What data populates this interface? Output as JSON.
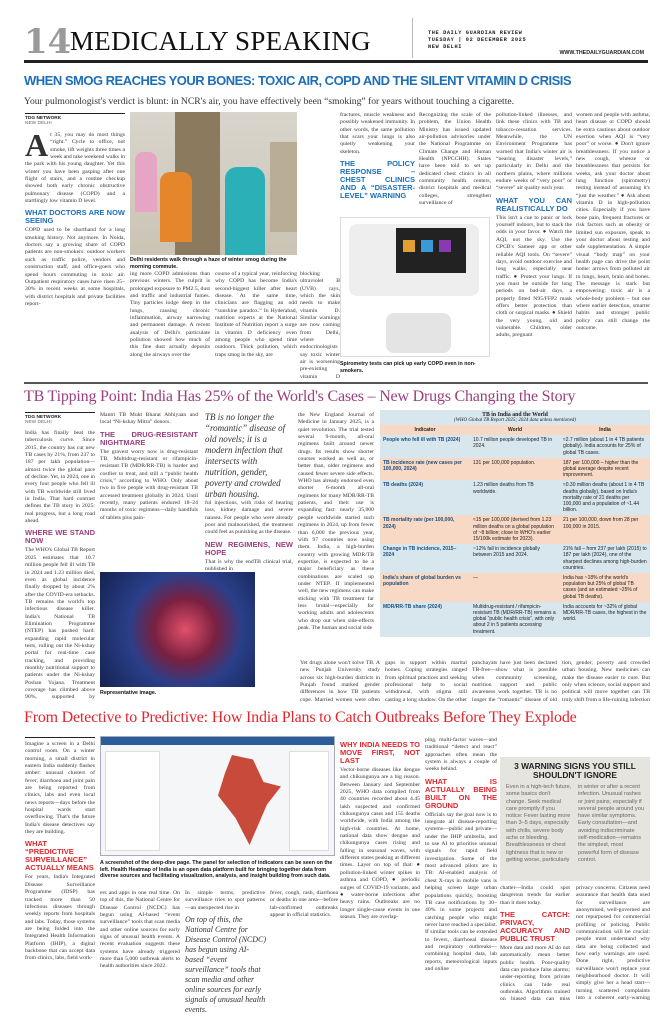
{
  "header": {
    "page_number": "14",
    "section": "MEDICALLY SPEAKING",
    "paper": "THE DAILY GUARDIAN REVIEW",
    "date": "TUESDAY | 02 DECEMBER 2025",
    "city": "NEW DELHI",
    "url": "WWW.THEDAILYGUARDIAN.COM"
  },
  "article1": {
    "headline": "WHEN SMOG REACHES YOUR BONES: TOXIC AIR, COPD AND THE SILENT VITAMIN D CRISIS",
    "dek": "Your pulmonologist's verdict is blunt: in NCR's air, you have effectively been “smoking” for years without touching a cigarette.",
    "byline": "TDG NETWORK",
    "location": "NEW DELHI",
    "drop_cap": "A",
    "intro": "t 35, you may do most things “right.” Cycle to office, not smoke, lift weights three times a week and take weekend walks in the park with his young daughter. Yet this winter you have been gasping after one flight of stairs, and a routine checkup showed both early chronic obstructive pulmonary disease (COPD) and a startlingly low vitamin D level.",
    "sub1": "WHAT DOCTORS ARE NOW SEEING",
    "col1b": "COPD used to be shorthand for a long smoking history. Not anymore. In Noida, doctors say a growing share of COPD patients are non-smokers: outdoor workers such as traffic police, vendors and construction staff, and office-goers who spend hours commuting in toxic air. Outpatient respiratory cases have risen 25–30% in recent weeks at some hospitals, with district hospitals and private facilities report-",
    "photo_caption": "Delhi residents walk through a haze of winter smog during the morning commute.",
    "col2": "ing more COPD admissions than previous winters. The culprit is prolonged exposure to PM2.5, dust and traffic and industrial fumes. Tiny particles lodge deep in the lungs, causing chronic inflammation, airway narrowing and permanent damage. A recent analysis of Delhi's particulate pollution showed how much of this fine dust actually deposits along the airways over the",
    "col3": "course of a typical year, reinforcing why COPD has become India's second-biggest killer after heart disease. At the same time, clinicians are flagging an odd “sunshine paradox.” In Hyderabad, nutrition experts at the National Institute of Nutrition report a surge in vitamin D deficiency even among people who spend time outdoors. Thick pollution, which traps smog in the sky, are",
    "col4": "blocking ultraviolet B (UVB) rays, which the skin needs to make vitamin D. Similar warnings are now coming from Delhi, where endocrinologists say toxic winter air is worsening pre-existing vitamin D deficiency, especially in office workers, older adults and women who already get limited sun exposure. Low vitamin D, in turn, raises the risk of brittle bones,",
    "col5": "fractures, muscle weakness and possibly weakened immunity. In other words, the same pollution that scars your lungs is also quietly weakening your skeleton.",
    "sub2": "THE POLICY RESPONSE – CHEST CLINICS AND A “DISASTER-LEVEL” WARNING",
    "col6": "Recognizing the scale of the problem, the Union Health Ministry has issued updated air-pollution advisories under the National Programme on Climate Change and Human Health (NPCCHH). States have been told to set up dedicated chest clinics in all community health centers, district hospitals and medical colleges, strengthen surveillance of",
    "col7": "pollution-linked illnesses, and link these clinics with TB and tobacco-cessation services. Meanwhile, the UN Environment Programme has warned that India's winter air is “nearing disaster levels,” particularly in Delhi and the northern plains, where millions endure weeks of “very poor” or “severe” air quality each year.",
    "sub3": "WHAT YOU CAN REALISTICALLY DO",
    "col7b": "This isn't a cue to panic or lock yourself indoors, but to stack the odds in your favor. ● Watch the AQI, not the sky. Use the CPCB's Sameer app or other reliable AQI tools. On “severe” days, avoid outdoor exercise and long walks, especially near traffic. ● Protect your lungs. If you must be outside for long periods on bad-air days, a properly fitted N95/FFP2 mask offers better protection than cloth or surgical masks. ● Shield the very young, old and vulnerable. Children, older adults, pregnant",
    "col8": "women and people with asthma, heart disease or COPD should be extra cautious about outdoor exertion when AQI is “very poor” or worse. ● Don't ignore breathlessness. If you notice a new cough, wheeze or breathlessness that persists for weeks, ask your doctor about lung function (spirometry) testing instead of assuming it's “just the weather.” ● Ask about vitamin D in high-pollution cities. Especially if you have bone pain, frequent fractures or risk factors such as obesity or limited sun exposure, speak to your doctor about testing and safe supplementation. A simple visual “body map” on your health page can drive the point home: arrows from polluted air to lungs, heart, brain and bones. The message is stark but empowering: toxic air is a whole-body problem – but one where earlier detection, smarter habits and stronger public policy can still change the outcome.",
    "spiro_caption": "Spirometry tests can pick up early COPD even in non-smokers."
  },
  "article2": {
    "headline": "TB Tipping Point: India Has 25% of the World's Cases – New Drugs Changing the Story",
    "byline": "TDG NETWORK",
    "location": "NEW DELHI",
    "col1": "India has finally beat the tuberculosis curve. Since 2015, the country has cut new TB cases by 21%, from 237 to 187 per lakh population—almost twice the global pace of decline. Yet, in 2024, one in every four people who fell ill with TB worldwide still lived in India. That hard contrast defines the TB story in 2025: real progress, but a long road ahead.",
    "sub1": "WHERE WE STAND NOW",
    "col1b": "The WHO's Global TB Report 2025 estimates that 10.7 million people fell ill with TB in 2024 and 1.23 million died, even as global incidence finally dropped by about 2% after the COVID-era setbacks. TB remains the world's top infectious disease killer. India's National TB Elimination Programme (NTEP) has pushed hard: expanding rapid molecular tests, rolling out the Ni-kshay portal for real-time case tracking, and providing monthly nutritional support to patients under the Ni-kshay Poshan Yojana. Treatment coverage has climbed above 90%, supported by community campaigns such as the Pradhan",
    "col2": "Mantri TB Mukt Bharat Abhiyaan and local “Ni-kshay Mitra” donors.",
    "sub2": "THE DRUG-RESISTANT NIGHTMARE",
    "col2b": "The gravest worry now is drug-resistant TB. Multidrug-resistant or rifampicin-resistant TB (MDR/RR-TB) is harder and costlier to treat, and still a “public health crisis,” according to WHO. Only about two in five people with drug-resistant TB accessed treatment globally in 2024. Until recently, many patients endured 18–24 months of toxic regimens—daily handfuls of tablets plus pain-",
    "quote": "TB is no longer the “romantic” disease of old novels; it is a modern infection that intersects with nutrition, gender, poverty and crowded urban housing.",
    "col3": "ful injections, with risks of hearing loss, kidney damage and severe nausea. For people who were already poor and malnourished, the treatment could feel as punishing as the disease.",
    "sub3": "NEW REGIMENS, NEW HOPE",
    "col3b": "That is why the endTB clinical trial, published in",
    "photo_caption": "Representative image.",
    "col4": "the New England Journal of Medicine in January 2025, is a quiet revolution. The trial tested several 9-month, all-oral regimens built around newer drugs. Its results show shorter courses worked as well as, or better than, older regimens and caused fewer severe side effects. WHO has already endorsed even shorter 6-month all-oral regimens for many MDR/RR-TB patients, and their use is expanding fast: nearly 35,000 people worldwide started such regimens in 2024, up from fewer than 6,000 the previous year, with 97 countries now using them. India, a high-burden country with growing MDR/TB expertise, is expected to be a major beneficiary as these combinations are scaled up under NTEP. If implemented well, the new regimens can make sticking with TB treatment far less brutal—especially for working adults and adolescents who drop out when side-effects peak. The human and social side",
    "col5": "Yet drugs alone won't solve TB. A new Punjab University study across six high-burden districts in Punjab found marked gender differences in how TB patients cope. Married women were often brought for treatment not by in-laws but by their birth families, highlighting",
    "col6": "gaps in support within marital homes. Coping strategies ranged from spiritual practices and seeking professional help to social withdrawal, with stigma still casting a long shadow. On the other hand, examples like Ganjam district in Odisha—where 165 gram",
    "col7": "panchayats have just been declared TB-free—show what is possible when community screening, nutrition support and public awareness work together. TB is no longer the “romantic” disease of old novels; it is a modern infection that intersects with nutri-",
    "col8": "tion, gender, poverty and crowded urban housing. New medicines can make the disease easier to cure. But only when science, social support and political will move together can TB truly shift from a life-ruining infection to a treatable episode in a person's life.",
    "table": {
      "title": "TB in India and the World",
      "subtitle": "(WHO Global TB Report 2025; 2024 data unless mentioned)",
      "headers": [
        "Indicator",
        "World",
        "India"
      ],
      "rows": [
        [
          "People who fell ill with TB (2024)",
          "10.7 million people developed TB in 2024.",
          "≈2.7 million (about 1 in 4 TB patients globally). India accounts for 25% of global TB cases."
        ],
        [
          "TB incidence rate (new cases per 100,000, 2024)",
          "131 per 100,000 population.",
          "187 per 100,000 – higher than the global average despite recent improvement."
        ],
        [
          "TB deaths (2024)",
          "1.23 million deaths from TB worldwide.",
          "≈0.30 million deaths (about 1 in 4 TB deaths globally), based on India's mortality rate of 21 deaths per 100,000 and a population of ~1.44 billion."
        ],
        [
          "TB mortality rate (per 100,000, 2024)",
          "≈15 per 100,000 (derived from 1.23 million deaths on a global population of ~8 billion; close to WHO's earlier 15/100k estimate for 2023).",
          "21 per 100,000, down from 28 per 100,000 in 2015."
        ],
        [
          "Change in TB incidence, 2015–2024",
          "~12% fall in incidence globally between 2015 and 2024.",
          "21% fall – from 237 per lakh (2015) to 187 per lakh (2024), one of the sharpest declines among high-burden countries."
        ],
        [
          "India's share of global burden vs population",
          "—",
          "India has ~18% of the world's population but 25% of global TB cases (and an estimated ~25% of global TB deaths)."
        ],
        [
          "MDR/RR-TB share (2024)",
          "Multidrug-resistant / rifampicin-resistant TB (MDR/RR-TB) remains a global “public health crisis”, with only about 2 in 5 patients accessing treatment.",
          "India accounts for ~32% of global MDR/RR-TB cases, the highest in the world."
        ]
      ]
    }
  },
  "article3": {
    "headline": "From Detective to Predictive: How India Plans to Catch Outbreaks Before They Explode",
    "col1": "Imagine a screen in a Delhi control room. On a winter morning, a small district in eastern India suddenly flashes amber: unusual clusters of fever, diarrhoea and joint pain are being reported from clinics, labs and even local news reports—days before the hospital wards start overflowing. That's the future India's disease detectives say they are building.",
    "sub1": "WHAT “PREDICTIVE SURVEILLANCE” ACTUALLY MEANS",
    "col1b": "For years, India's Integrated Disease Surveillance Programme (IDSP) has tracked more than 50 infectious diseases through weekly reports from hospitals and labs. Today, those systems are being folded into the Integrated Health Information Platform (IHIP), a digital backbone that can accept data from clinics, labs, field work-",
    "screen_caption": "A screenshot of the deep-dive page. The panel for selection of indicators can be seen on the left. Health Heatmap of India is an open data platform built for bringing together data from diverse sources and facilitating visualization, analysis, and insight building from such data.",
    "col2": "ers and apps in one real time. On top of this, the National Centre for Disease Control (NCDC) has begun using AI-based “event surveillance” tools that scan media and other online sources for early signs of unusual health events. A recent evaluation suggests these systems have already triggered more than 5,000 outbreak alerts to health authorities since 2022.",
    "col3": "In simple terms, predictive surveillance tries to spot patterns—an unexpected rise in",
    "quote": "On top of this, the National Centre for Disease Control (NCDC) has begun using AI-based “event surveillance” tools that scan media and other online sources for early signals of unusual health events.",
    "col4": "fever, cough, rash, diarrhoea or deaths in one area—before lab-confirmed outbreaks appear in official statistics.",
    "sub2": "WHY INDIA NEEDS TO MOVE FIRST, NOT LAST",
    "col5": "Vector-borne diseases like dengue and chikungunya are a big reason. Between January and September 2025, WHO data compiled from 40 countries recorded about 4.45 lakh suspected and confirmed chikungunya cases and 155 deaths worldwide, with India among the high-risk countries. At home, national data show dengue and chikungunya cases rising and falling in seasonal waves, with different states peaking at different times. Layer on top of that: ● pollution-linked winter spikes in asthma and COPD, ● periodic surges of COVID-19 variants, and ● water-borne infections after heavy rains. Outbreaks are no longer single-cause events in one season. They are overlap-",
    "col6": "ping, multi-factor waves—and traditional “detect and react” approaches often mean the system is always a couple of weeks behind.",
    "sub3": "WHAT IS ACTUALLY BEING BUILT ON THE GROUND",
    "col6b": "Officials say the goal now is to integrate all disease-reporting systems—public and private—under the IHIP umbrella, and to use AI to prioritise unusual signals for rapid field investigation. Some of the most advanced pilots are in TB: AI-enabled analysis of chest X-rays in mobile vans is helping screen large urban populations quickly, boosting TB case notifications by 30–40% in some projects and catching people who might never have reached a specialist. If similar tools can be extended to fevers, diarrhoeal disease and respiratory outbreaks—combining hospital data, lab reports, meteorological inputs and online",
    "col7": "chatter—India could spot dangerous trends far earlier than it does today.",
    "sub4": "THE CATCH: PRIVACY, ACCURACY AND PUBLIC TRUST",
    "col7b": "More data and more AI do not automatically mean better public health. Poor-quality data can produce false alarms; under-reporting from private clinics can hide real outbreaks. Algorithms trained on biased data can miss threats in poorer or rural districts. There are also legitimate",
    "box": {
      "title": "3 WARNING SIGNS YOU STILL SHOULDN'T IGNORE",
      "left": "Even in a high-tech future, some basics don't change. Seek medical care promptly if you notice: Fever lasting more than 3–5 days, especially with chills, severe body ache or bleeding. Breathlessness or chest tightness that is new or getting worse, particularly",
      "right": "in winter or after a recent infection. Unusual rashes or joint pains, especially if several people around you have similar symptoms. Early consultation—and avoiding indiscriminate self-medication—remains the simplest, most powerful form of disease control."
    },
    "col8": "privacy concerns. Citizens need assurance that health data used for surveillance are anonymised, well-governed and not repurposed for commercial profiling or policing. Public communication will be crucial: people must understand why data are being collected and how early warnings are used. Done right, predictive surveillance won't replace your neighbourhood doctor. It will simply give her a head start—turning scattered complaints into a coherent early-warning signal."
  }
}
